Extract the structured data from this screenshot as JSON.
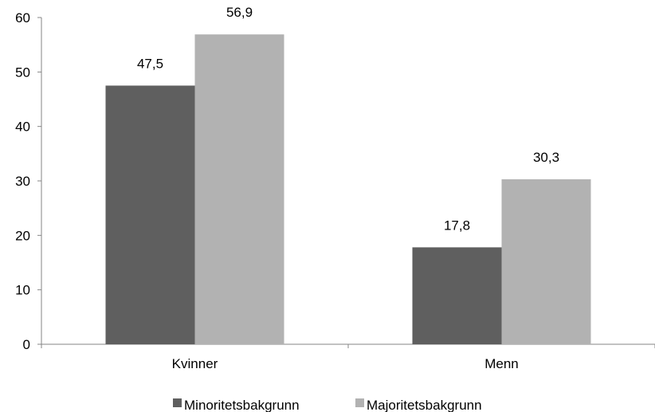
{
  "chart_data": {
    "type": "bar",
    "categories": [
      "Kvinner",
      "Menn"
    ],
    "series": [
      {
        "name": "Minoritetsbakgrunn",
        "color": "#5f5f5f",
        "values": [
          47.5,
          17.8
        ]
      },
      {
        "name": "Majoritetsbakgrunn",
        "color": "#b2b2b2",
        "values": [
          56.9,
          30.3
        ]
      }
    ],
    "data_labels": [
      [
        "47,5",
        "17,8"
      ],
      [
        "56,9",
        "30,3"
      ]
    ],
    "y_ticks": [
      "0",
      "10",
      "20",
      "30",
      "40",
      "50",
      "60"
    ],
    "ylim": [
      0,
      60
    ],
    "grid": false,
    "legend_position": "bottom",
    "title": "",
    "xlabel": "",
    "ylabel": ""
  }
}
